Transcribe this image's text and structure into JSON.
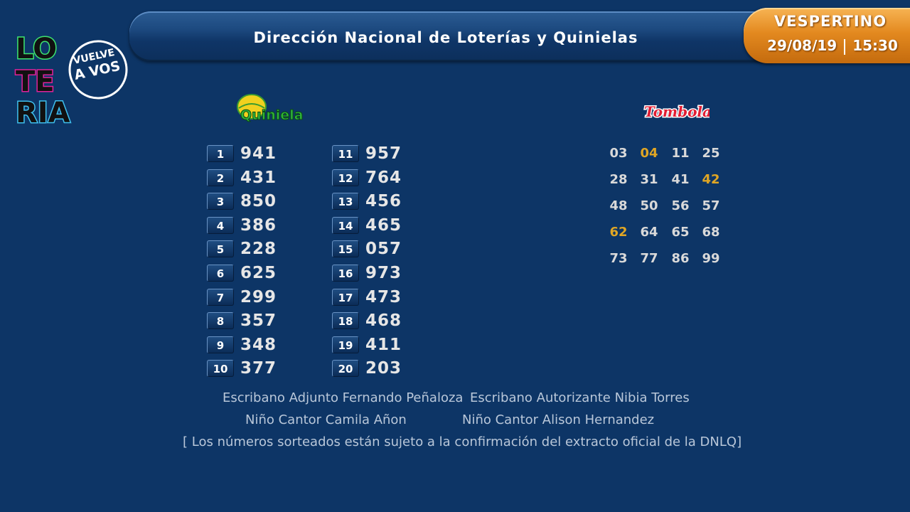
{
  "header": {
    "title": "Dirección Nacional de Loterías y Quinielas"
  },
  "badge": {
    "title": "VESPERTINO",
    "date": "29/08/19",
    "time": "15:30"
  },
  "logo": {
    "letters": [
      "LO",
      "TE",
      "RIA"
    ],
    "tagline_1": "VUELVE",
    "tagline_2": "A VOS"
  },
  "quiniela": {
    "logo_text": "Quiniela",
    "results": [
      {
        "pos": "1",
        "value": "941"
      },
      {
        "pos": "2",
        "value": "431"
      },
      {
        "pos": "3",
        "value": "850"
      },
      {
        "pos": "4",
        "value": "386"
      },
      {
        "pos": "5",
        "value": "228"
      },
      {
        "pos": "6",
        "value": "625"
      },
      {
        "pos": "7",
        "value": "299"
      },
      {
        "pos": "8",
        "value": "357"
      },
      {
        "pos": "9",
        "value": "348"
      },
      {
        "pos": "10",
        "value": "377"
      },
      {
        "pos": "11",
        "value": "957"
      },
      {
        "pos": "12",
        "value": "764"
      },
      {
        "pos": "13",
        "value": "456"
      },
      {
        "pos": "14",
        "value": "465"
      },
      {
        "pos": "15",
        "value": "057"
      },
      {
        "pos": "16",
        "value": "973"
      },
      {
        "pos": "17",
        "value": "473"
      },
      {
        "pos": "18",
        "value": "468"
      },
      {
        "pos": "19",
        "value": "411"
      },
      {
        "pos": "20",
        "value": "203"
      }
    ]
  },
  "tombola": {
    "logo_text": "Tombola",
    "numbers": [
      {
        "n": "03",
        "highlight": false
      },
      {
        "n": "04",
        "highlight": true
      },
      {
        "n": "11",
        "highlight": false
      },
      {
        "n": "25",
        "highlight": false
      },
      {
        "n": "28",
        "highlight": false
      },
      {
        "n": "31",
        "highlight": false
      },
      {
        "n": "41",
        "highlight": false
      },
      {
        "n": "42",
        "highlight": true
      },
      {
        "n": "48",
        "highlight": false
      },
      {
        "n": "50",
        "highlight": false
      },
      {
        "n": "56",
        "highlight": false
      },
      {
        "n": "57",
        "highlight": false
      },
      {
        "n": "62",
        "highlight": true
      },
      {
        "n": "64",
        "highlight": false
      },
      {
        "n": "65",
        "highlight": false
      },
      {
        "n": "68",
        "highlight": false
      },
      {
        "n": "73",
        "highlight": false
      },
      {
        "n": "77",
        "highlight": false
      },
      {
        "n": "86",
        "highlight": false
      },
      {
        "n": "99",
        "highlight": false
      }
    ],
    "highlight_color": "#e0a624",
    "normal_color": "#d9d9d9"
  },
  "footer": {
    "escribano_adjunto": "Escribano Adjunto Fernando Peñaloza",
    "escribano_autorizante": "Escribano Autorizante Nibia Torres",
    "nino_cantor_1": "Niño Cantor Camila Añon",
    "nino_cantor_2": "Niño Cantor Alison Hernandez",
    "disclaimer": "[ Los números sorteados están sujeto a la confirmación del extracto oficial de la DNLQ]"
  },
  "colors": {
    "background": "#0d3566",
    "badge_orange": "#e3891f"
  }
}
